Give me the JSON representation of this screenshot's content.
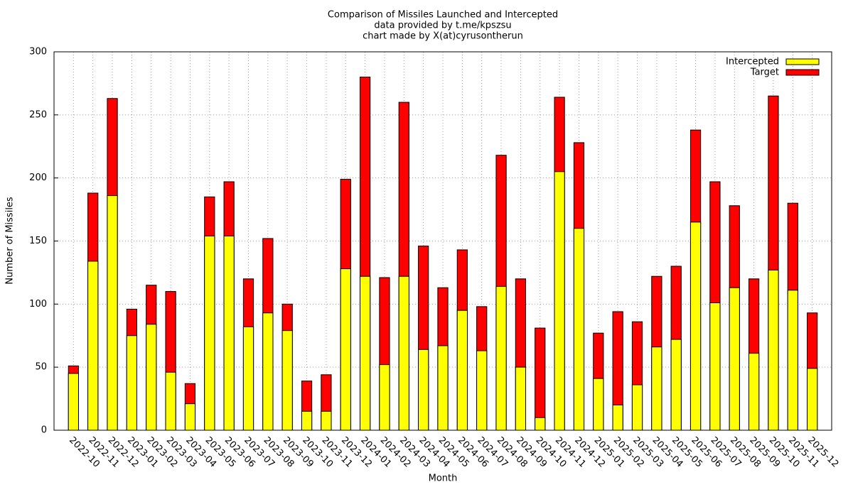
{
  "chart_data": {
    "type": "bar",
    "title": "Comparison of Missiles Launched and Intercepted",
    "subtitle": [
      "data provided by t.me/kpszsu",
      "chart made by X(at)cyrusontherun"
    ],
    "xlabel": "Month",
    "ylabel": "Number of Missiles",
    "categories": [
      "2022-10",
      "2022-11",
      "2022-12",
      "2023-01",
      "2023-02",
      "2023-03",
      "2023-04",
      "2023-05",
      "2023-06",
      "2023-07",
      "2023-08",
      "2023-09",
      "2023-10",
      "2023-11",
      "2023-12",
      "2024-01",
      "2024-02",
      "2024-03",
      "2024-04",
      "2024-05",
      "2024-06",
      "2024-07",
      "2024-08",
      "2024-09",
      "2024-10",
      "2024-11",
      "2024-12",
      "2025-01",
      "2025-02",
      "2025-03",
      "2025-04",
      "2025-05",
      "2025-06",
      "2025-07",
      "2025-08",
      "2025-09",
      "2025-10",
      "2025-11",
      "2025-12"
    ],
    "series": [
      {
        "name": "Intercepted",
        "color": "#ffff00",
        "values": [
          45,
          134,
          186,
          75,
          84,
          46,
          21,
          154,
          154,
          82,
          93,
          79,
          15,
          15,
          128,
          122,
          52,
          122,
          64,
          67,
          95,
          63,
          114,
          50,
          10,
          205,
          160,
          41,
          20,
          36,
          66,
          72,
          165,
          101,
          113,
          61,
          127,
          111,
          49
        ]
      },
      {
        "name": "Target",
        "color": "#ff0000",
        "values": [
          51,
          188,
          263,
          96,
          115,
          110,
          37,
          185,
          197,
          120,
          152,
          100,
          39,
          44,
          199,
          280,
          121,
          260,
          146,
          113,
          143,
          98,
          218,
          120,
          81,
          264,
          228,
          77,
          94,
          86,
          122,
          130,
          238,
          197,
          178,
          120,
          265,
          180,
          93
        ]
      }
    ],
    "ylim": [
      0,
      300
    ],
    "yticks": [
      0,
      50,
      100,
      150,
      200,
      250,
      300
    ],
    "grid": true,
    "legend": "top right"
  }
}
